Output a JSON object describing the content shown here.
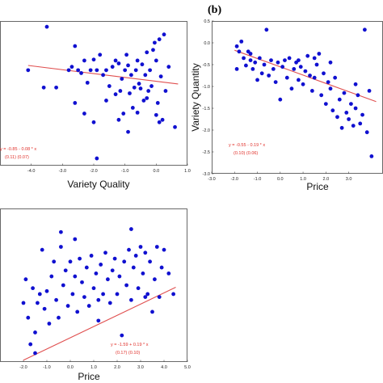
{
  "chart_data": [
    {
      "type": "scatter",
      "panel_label": "",
      "xlabel": "Variety Quality",
      "ylabel": "",
      "xlim": [
        -5.0,
        1.0
      ],
      "x_ticks": [
        "-4.0",
        "-3.0",
        "-2.0",
        "-1.0",
        "0.0",
        "1.0"
      ],
      "ylim": [
        -2.6,
        0.4
      ],
      "y_ticks": [],
      "equation": "y = -0.85 - 0.08 * x",
      "std_errors": "(0.11)  (0.07)",
      "fit": {
        "intercept": -0.85,
        "slope": -0.08
      },
      "marker_color": "#1010d0",
      "fit_color": "#e05050",
      "points": [
        [
          -4.1,
          -0.62
        ],
        [
          -3.6,
          -0.98
        ],
        [
          -3.5,
          0.28
        ],
        [
          -3.2,
          -0.98
        ],
        [
          -2.8,
          -0.62
        ],
        [
          -2.7,
          -0.55
        ],
        [
          -2.6,
          -0.12
        ],
        [
          -2.5,
          -0.62
        ],
        [
          -2.4,
          -0.68
        ],
        [
          -2.3,
          -0.42
        ],
        [
          -2.2,
          -0.88
        ],
        [
          -2.1,
          -0.62
        ],
        [
          -2.0,
          -0.4
        ],
        [
          -1.9,
          -0.62
        ],
        [
          -1.8,
          -0.3
        ],
        [
          -1.7,
          -0.72
        ],
        [
          -1.6,
          -0.62
        ],
        [
          -1.5,
          -0.95
        ],
        [
          -1.4,
          -0.55
        ],
        [
          -1.3,
          -0.42
        ],
        [
          -1.2,
          -0.48
        ],
        [
          -1.15,
          -1.05
        ],
        [
          -1.1,
          -0.8
        ],
        [
          -1.05,
          -1.52
        ],
        [
          -1.0,
          -0.62
        ],
        [
          -0.95,
          -0.3
        ],
        [
          -0.9,
          -0.52
        ],
        [
          -0.85,
          -1.1
        ],
        [
          -0.8,
          -0.72
        ],
        [
          -0.75,
          -1.4
        ],
        [
          -0.7,
          -0.98
        ],
        [
          -0.65,
          -0.62
        ],
        [
          -0.6,
          -0.42
        ],
        [
          -0.55,
          -0.9
        ],
        [
          -0.5,
          -1.0
        ],
        [
          -0.45,
          -0.5
        ],
        [
          -0.4,
          -1.25
        ],
        [
          -0.35,
          -0.72
        ],
        [
          -0.3,
          -0.25
        ],
        [
          -0.25,
          -1.05
        ],
        [
          -0.2,
          -0.62
        ],
        [
          -0.15,
          -0.95
        ],
        [
          -0.1,
          -0.2
        ],
        [
          -0.05,
          -0.05
        ],
        [
          0.0,
          -0.42
        ],
        [
          0.05,
          -1.3
        ],
        [
          0.1,
          0.02
        ],
        [
          0.15,
          -0.75
        ],
        [
          0.2,
          -1.65
        ],
        [
          0.25,
          0.12
        ],
        [
          0.3,
          -1.05
        ],
        [
          0.4,
          -0.55
        ],
        [
          -1.9,
          -2.45
        ],
        [
          0.6,
          -1.8
        ],
        [
          -2.0,
          -1.7
        ],
        [
          -2.3,
          -1.52
        ],
        [
          -1.6,
          -1.25
        ],
        [
          -1.3,
          -1.12
        ],
        [
          -2.6,
          -1.3
        ],
        [
          -0.9,
          -1.9
        ],
        [
          -1.2,
          -1.65
        ],
        [
          -0.6,
          -1.5
        ],
        [
          -0.3,
          -1.2
        ],
        [
          0.0,
          -1.55
        ],
        [
          0.1,
          -1.7
        ]
      ]
    },
    {
      "type": "scatter",
      "panel_label": "(b)",
      "xlabel": "Price",
      "ylabel": "Variety Quantity",
      "xlim": [
        -3.0,
        4.5
      ],
      "x_ticks": [
        "-3.0",
        "-2.0",
        "-1.0",
        "0.0",
        "1.0",
        "2.0",
        "3.0"
      ],
      "ylim": [
        -3.0,
        0.5
      ],
      "y_ticks": [
        "0.5",
        "0.0",
        "-0.5",
        "-1.0",
        "-1.5",
        "-2.0",
        "-2.5",
        "-3.0"
      ],
      "equation": "y = -0.55 - 0.19 * x",
      "std_errors": "(0.10)  (0.06)",
      "fit": {
        "intercept": -0.55,
        "slope": -0.19
      },
      "marker_color": "#1010d0",
      "fit_color": "#e05050",
      "points": [
        [
          -1.9,
          -0.08
        ],
        [
          -1.8,
          -0.2
        ],
        [
          -1.7,
          0.03
        ],
        [
          -1.6,
          -0.35
        ],
        [
          -1.5,
          -0.52
        ],
        [
          -1.4,
          -0.2
        ],
        [
          -1.3,
          -0.4
        ],
        [
          -1.2,
          -0.6
        ],
        [
          -1.1,
          -0.45
        ],
        [
          -1.0,
          -0.85
        ],
        [
          -0.9,
          -0.35
        ],
        [
          -0.8,
          -0.7
        ],
        [
          -0.7,
          -0.5
        ],
        [
          -0.6,
          0.3
        ],
        [
          -0.5,
          -0.75
        ],
        [
          -0.4,
          -0.4
        ],
        [
          -0.3,
          -0.6
        ],
        [
          -0.2,
          -0.9
        ],
        [
          -0.1,
          -0.45
        ],
        [
          0.0,
          -1.3
        ],
        [
          0.1,
          -0.55
        ],
        [
          0.2,
          -0.4
        ],
        [
          0.3,
          -0.8
        ],
        [
          0.4,
          -0.35
        ],
        [
          0.5,
          -1.05
        ],
        [
          0.6,
          -0.6
        ],
        [
          0.7,
          -0.45
        ],
        [
          0.8,
          -0.85
        ],
        [
          0.9,
          -0.55
        ],
        [
          1.0,
          -0.95
        ],
        [
          1.1,
          -0.65
        ],
        [
          1.2,
          -0.3
        ],
        [
          1.3,
          -0.75
        ],
        [
          1.4,
          -1.1
        ],
        [
          1.5,
          -0.8
        ],
        [
          1.6,
          -0.5
        ],
        [
          1.7,
          -0.25
        ],
        [
          1.8,
          -1.2
        ],
        [
          1.9,
          -0.7
        ],
        [
          2.0,
          -1.4
        ],
        [
          2.1,
          -0.9
        ],
        [
          2.2,
          -1.05
        ],
        [
          2.3,
          -1.55
        ],
        [
          2.4,
          -0.8
        ],
        [
          2.5,
          -1.7
        ],
        [
          2.6,
          -1.3
        ],
        [
          2.7,
          -1.95
        ],
        [
          2.8,
          -1.15
        ],
        [
          2.9,
          -1.6
        ],
        [
          3.0,
          -1.75
        ],
        [
          3.1,
          -1.4
        ],
        [
          3.2,
          -1.9
        ],
        [
          3.3,
          -1.5
        ],
        [
          3.4,
          -1.2
        ],
        [
          3.5,
          -1.85
        ],
        [
          3.6,
          -1.65
        ],
        [
          3.7,
          0.3
        ],
        [
          3.8,
          -2.05
        ],
        [
          3.9,
          -1.1
        ],
        [
          4.0,
          -2.6
        ],
        [
          -1.9,
          -0.6
        ],
        [
          -1.3,
          -0.25
        ],
        [
          0.8,
          -0.4
        ],
        [
          1.5,
          -0.35
        ],
        [
          2.2,
          -0.45
        ],
        [
          3.3,
          -0.95
        ]
      ]
    },
    {
      "type": "scatter",
      "panel_label": "",
      "xlabel": "Price",
      "ylabel": "",
      "xlim": [
        -3.0,
        5.0
      ],
      "x_ticks": [
        "-2.0",
        "-1.0",
        "0.0",
        "1.0",
        "2.0",
        "3.0",
        "4.0",
        "5.0"
      ],
      "ylim": [
        -2.0,
        0.6
      ],
      "y_ticks": [],
      "equation": "y = -1.59 + 0.19 * x",
      "std_errors": "(0.17)  (0.10)",
      "fit": {
        "intercept": -1.59,
        "slope": 0.19
      },
      "marker_color": "#1010d0",
      "fit_color": "#e05050",
      "points": [
        [
          -2.0,
          -1.0
        ],
        [
          -1.9,
          -0.6
        ],
        [
          -1.8,
          -1.25
        ],
        [
          -1.7,
          -1.7
        ],
        [
          -1.6,
          -0.75
        ],
        [
          -1.5,
          -1.5
        ],
        [
          -1.4,
          -1.0
        ],
        [
          -1.3,
          -0.85
        ],
        [
          -1.2,
          -0.1
        ],
        [
          -1.1,
          -1.1
        ],
        [
          -1.0,
          -0.8
        ],
        [
          -0.9,
          -1.35
        ],
        [
          -0.8,
          -0.55
        ],
        [
          -0.7,
          -0.3
        ],
        [
          -0.6,
          -0.95
        ],
        [
          -0.5,
          -1.25
        ],
        [
          -0.4,
          -0.05
        ],
        [
          -0.3,
          -0.7
        ],
        [
          -0.2,
          -0.45
        ],
        [
          -0.1,
          -1.05
        ],
        [
          0.0,
          -0.3
        ],
        [
          0.1,
          -0.85
        ],
        [
          0.2,
          -0.55
        ],
        [
          0.3,
          -1.15
        ],
        [
          0.4,
          -0.25
        ],
        [
          0.5,
          -0.65
        ],
        [
          0.6,
          -0.9
        ],
        [
          0.7,
          -0.4
        ],
        [
          0.8,
          -1.05
        ],
        [
          0.9,
          -0.2
        ],
        [
          1.0,
          -0.75
        ],
        [
          1.1,
          -0.5
        ],
        [
          1.2,
          -1.3
        ],
        [
          1.3,
          -0.35
        ],
        [
          1.4,
          -0.85
        ],
        [
          1.5,
          -0.15
        ],
        [
          1.6,
          -0.6
        ],
        [
          1.7,
          -1.0
        ],
        [
          1.8,
          -0.45
        ],
        [
          1.9,
          -0.25
        ],
        [
          2.0,
          -0.85
        ],
        [
          2.1,
          -0.55
        ],
        [
          2.2,
          -1.55
        ],
        [
          2.3,
          -0.3
        ],
        [
          2.4,
          -0.7
        ],
        [
          2.5,
          -0.1
        ],
        [
          2.6,
          -0.95
        ],
        [
          2.7,
          -0.4
        ],
        [
          2.8,
          -0.2
        ],
        [
          2.9,
          -0.75
        ],
        [
          3.0,
          -0.05
        ],
        [
          3.1,
          -0.5
        ],
        [
          3.2,
          -0.15
        ],
        [
          3.3,
          -0.85
        ],
        [
          3.4,
          -0.3
        ],
        [
          3.5,
          -1.15
        ],
        [
          3.6,
          -0.6
        ],
        [
          3.7,
          -0.05
        ],
        [
          3.8,
          -0.9
        ],
        [
          3.9,
          -0.4
        ],
        [
          4.0,
          -0.1
        ],
        [
          4.2,
          -0.5
        ],
        [
          4.4,
          -0.85
        ],
        [
          -1.5,
          -1.85
        ],
        [
          0.2,
          0.08
        ],
        [
          1.2,
          -0.95
        ],
        [
          2.6,
          0.25
        ],
        [
          3.2,
          -0.9
        ],
        [
          -0.4,
          0.2
        ]
      ]
    }
  ]
}
